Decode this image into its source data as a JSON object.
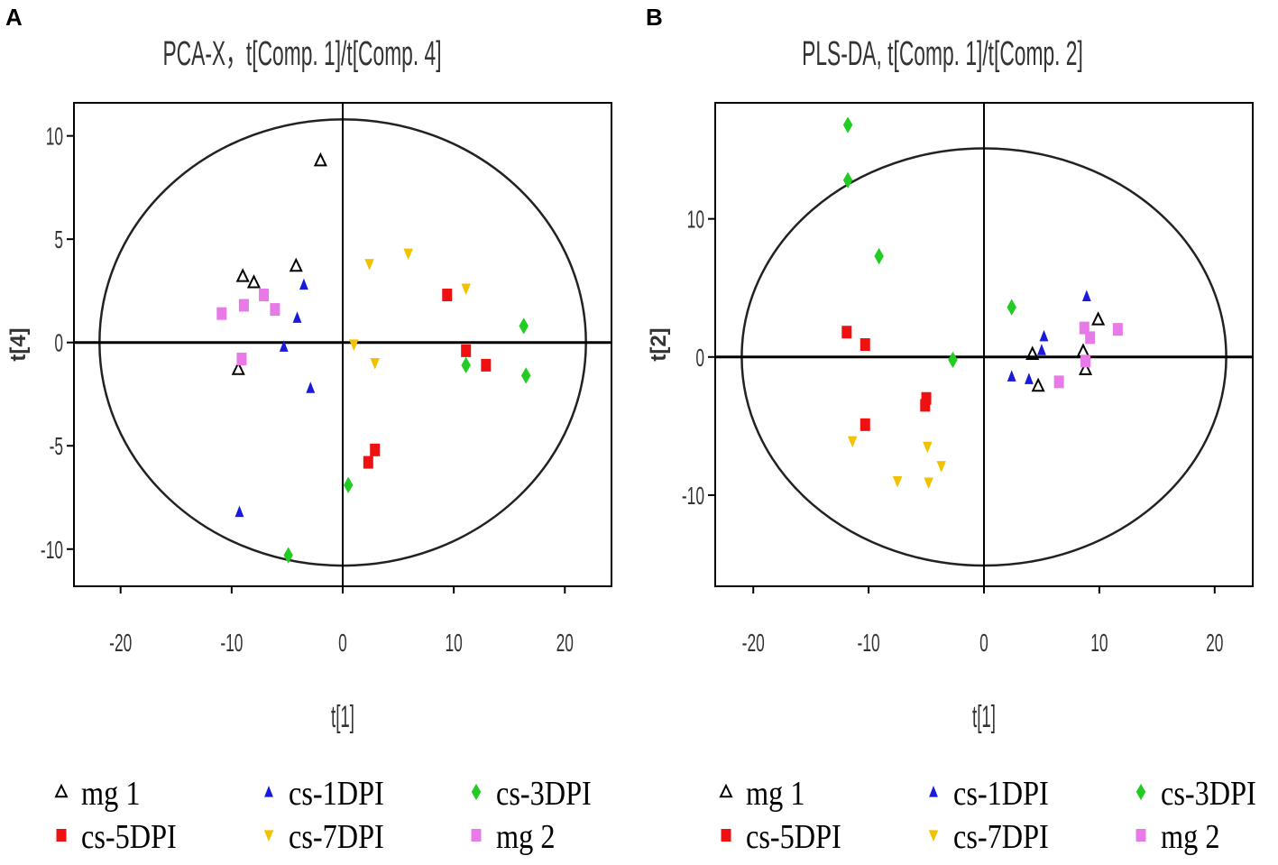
{
  "panels": [
    {
      "letter": "A"
    },
    {
      "letter": "B"
    }
  ],
  "colors": {
    "mg 1": "#000000",
    "cs-1DPI": "#1a1adb",
    "cs-3DPI": "#22cc22",
    "cs-5DPI": "#ee1111",
    "cs-7DPI": "#f2c200",
    "mg 2": "#e87ae8"
  },
  "legend": [
    {
      "label": "mg 1",
      "marker": "triangle-up-open"
    },
    {
      "label": "cs-1DPI",
      "marker": "triangle-up"
    },
    {
      "label": "cs-3DPI",
      "marker": "diamond"
    },
    {
      "label": "cs-5DPI",
      "marker": "square"
    },
    {
      "label": "cs-7DPI",
      "marker": "triangle-down"
    },
    {
      "label": "mg 2",
      "marker": "square"
    }
  ],
  "chart_data": [
    {
      "type": "scatter",
      "title": "PCA-X，t[Comp. 1]/t[Comp. 4]",
      "xlabel": "t[1]",
      "ylabel": "t[4]",
      "xlim": [
        -24.2,
        24.2
      ],
      "ylim": [
        -11.8,
        11.6
      ],
      "xticks": [
        -20,
        -10,
        0,
        10,
        20
      ],
      "yticks": [
        -10,
        -5,
        0,
        5,
        10
      ],
      "ellipse": {
        "rx": 21.9,
        "ry": 10.8
      },
      "series": [
        {
          "name": "mg 1",
          "marker": "triangle-up-open",
          "points": [
            [
              -2,
              8.8
            ],
            [
              -9,
              3.2
            ],
            [
              -8,
              2.9
            ],
            [
              -4.2,
              3.7
            ],
            [
              -9.4,
              -1.3
            ]
          ]
        },
        {
          "name": "cs-1DPI",
          "marker": "triangle-up",
          "points": [
            [
              -3.5,
              2.8
            ],
            [
              -4.1,
              1.2
            ],
            [
              -5.3,
              -0.2
            ],
            [
              -2.9,
              -2.2
            ],
            [
              -9.3,
              -8.2
            ]
          ]
        },
        {
          "name": "cs-3DPI",
          "marker": "diamond",
          "points": [
            [
              16.3,
              0.8
            ],
            [
              16.5,
              -1.6
            ],
            [
              11.1,
              -1.1
            ],
            [
              0.5,
              -6.9
            ],
            [
              -4.9,
              -10.3
            ]
          ]
        },
        {
          "name": "cs-5DPI",
          "marker": "square",
          "points": [
            [
              9.4,
              2.3
            ],
            [
              11.1,
              -0.4
            ],
            [
              12.9,
              -1.1
            ],
            [
              2.9,
              -5.2
            ],
            [
              2.3,
              -5.8
            ]
          ]
        },
        {
          "name": "cs-7DPI",
          "marker": "triangle-down",
          "points": [
            [
              2.4,
              3.8
            ],
            [
              5.9,
              4.3
            ],
            [
              11.1,
              2.6
            ],
            [
              1,
              -0.1
            ],
            [
              2.9,
              -1
            ]
          ]
        },
        {
          "name": "mg 2",
          "marker": "square",
          "points": [
            [
              -10.9,
              1.4
            ],
            [
              -8.9,
              1.8
            ],
            [
              -7.1,
              2.3
            ],
            [
              -6.1,
              1.6
            ],
            [
              -9.1,
              -0.8
            ]
          ]
        }
      ]
    },
    {
      "type": "scatter",
      "title": "PLS-DA, t[Comp. 1]/t[Comp. 2]",
      "xlabel": "t[1]",
      "ylabel": "t[2]",
      "xlim": [
        -23.3,
        23.3
      ],
      "ylim": [
        -16.6,
        18.4
      ],
      "xticks": [
        -20,
        -10,
        0,
        10,
        20
      ],
      "yticks": [
        -10,
        0,
        10
      ],
      "ellipse": {
        "rx": 21,
        "ry": 15.1
      },
      "series": [
        {
          "name": "mg 1",
          "marker": "triangle-up-open",
          "points": [
            [
              4.2,
              0.2
            ],
            [
              4.7,
              -2.1
            ],
            [
              8.6,
              0.4
            ],
            [
              8.8,
              -0.9
            ],
            [
              9.9,
              2.7
            ]
          ]
        },
        {
          "name": "cs-1DPI",
          "marker": "triangle-up",
          "points": [
            [
              2.4,
              -1.4
            ],
            [
              3.9,
              -1.6
            ],
            [
              5.2,
              1.5
            ],
            [
              5,
              0.5
            ],
            [
              8.9,
              4.4
            ]
          ]
        },
        {
          "name": "cs-3DPI",
          "marker": "diamond",
          "points": [
            [
              -11.8,
              16.8
            ],
            [
              -11.8,
              12.8
            ],
            [
              -9.1,
              7.3
            ],
            [
              2.4,
              3.6
            ],
            [
              -2.7,
              -0.2
            ]
          ]
        },
        {
          "name": "cs-5DPI",
          "marker": "square",
          "points": [
            [
              -11.9,
              1.8
            ],
            [
              -10.3,
              0.9
            ],
            [
              -5,
              -3
            ],
            [
              -5.1,
              -3.5
            ],
            [
              -10.3,
              -4.9
            ]
          ]
        },
        {
          "name": "cs-7DPI",
          "marker": "triangle-down",
          "points": [
            [
              -11.4,
              -6.1
            ],
            [
              -7.5,
              -9
            ],
            [
              -4.9,
              -6.5
            ],
            [
              -3.7,
              -7.9
            ],
            [
              -4.8,
              -9.1
            ]
          ]
        },
        {
          "name": "mg 2",
          "marker": "square",
          "points": [
            [
              8.7,
              2.1
            ],
            [
              9.2,
              1.4
            ],
            [
              11.6,
              2
            ],
            [
              6.5,
              -1.8
            ],
            [
              8.8,
              -0.3
            ]
          ]
        }
      ]
    }
  ]
}
